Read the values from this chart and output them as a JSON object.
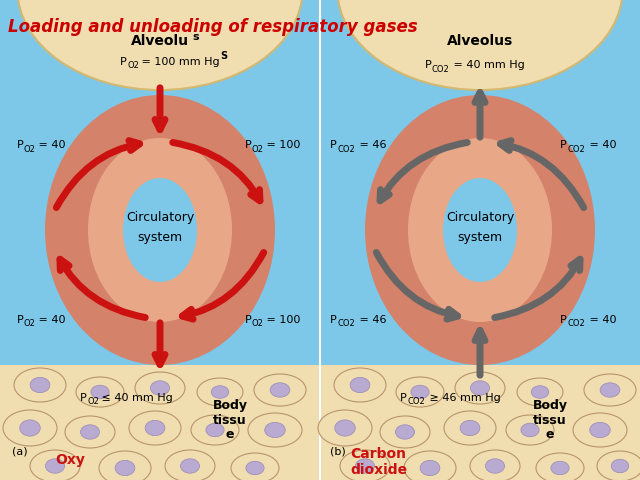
{
  "title": "Loading and unloading of respiratory gases",
  "title_color": "#cc0000",
  "bg_color": "#7dc8e8",
  "alveolus_color": "#f0ddb0",
  "alveolus_border": "#d4b870",
  "body_tissue_color": "#f0ddb0",
  "body_tissue_border": "#c8a855",
  "vessel_outer_color": "#d4826a",
  "vessel_inner_color": "#e8a888",
  "center_color": "#7dc8e8",
  "arrow_color_oxy": "#cc1111",
  "arrow_color_co2": "#666666",
  "panel_a": {
    "label_top1": "Alveolu",
    "label_top2": "s",
    "alveolus_text": "P",
    "alveolus_sub": "O2",
    "alveolus_val": " = 100 mm Hg",
    "alveolus_super": "S",
    "left_top_p": "P",
    "left_top_sub": "O2",
    "left_top_val": " = 40",
    "right_top_p": "P",
    "right_top_sub": "O2",
    "right_top_val": " = 100",
    "left_bot_p": "P",
    "left_bot_sub": "O2",
    "left_bot_val": " = 40",
    "right_bot_p": "P",
    "right_bot_sub": "O2",
    "right_bot_val": " = 100",
    "body_p": "P",
    "body_sub": "O2",
    "body_val": " ≤ 40 mm Hg",
    "center_text": "Circulatory\nsystem",
    "sub_label": "(a)",
    "sub_name": "Oxy",
    "sub_name_color": "#cc1111"
  },
  "panel_b": {
    "label_top": "Alveolus",
    "alveolus_text": "P",
    "alveolus_sub": "CO2",
    "alveolus_val": " = 40 mm Hg",
    "left_top_p": "P",
    "left_top_sub": "CO2",
    "left_top_val": " = 46",
    "right_top_p": "P",
    "right_top_sub": "CO2",
    "right_top_val": " = 40",
    "left_bot_p": "P",
    "left_bot_sub": "CO2",
    "left_bot_val": " = 46",
    "right_bot_p": "P",
    "right_bot_sub": "CO2",
    "right_bot_val": " = 40",
    "body_p": "P",
    "body_sub": "CO2",
    "body_val": " ≥ 46 mm Hg",
    "center_text": "Circulatory\nsystem",
    "sub_label": "(b)",
    "sub_name": "Carbon\ndioxide",
    "sub_name_color": "#cc1111"
  }
}
